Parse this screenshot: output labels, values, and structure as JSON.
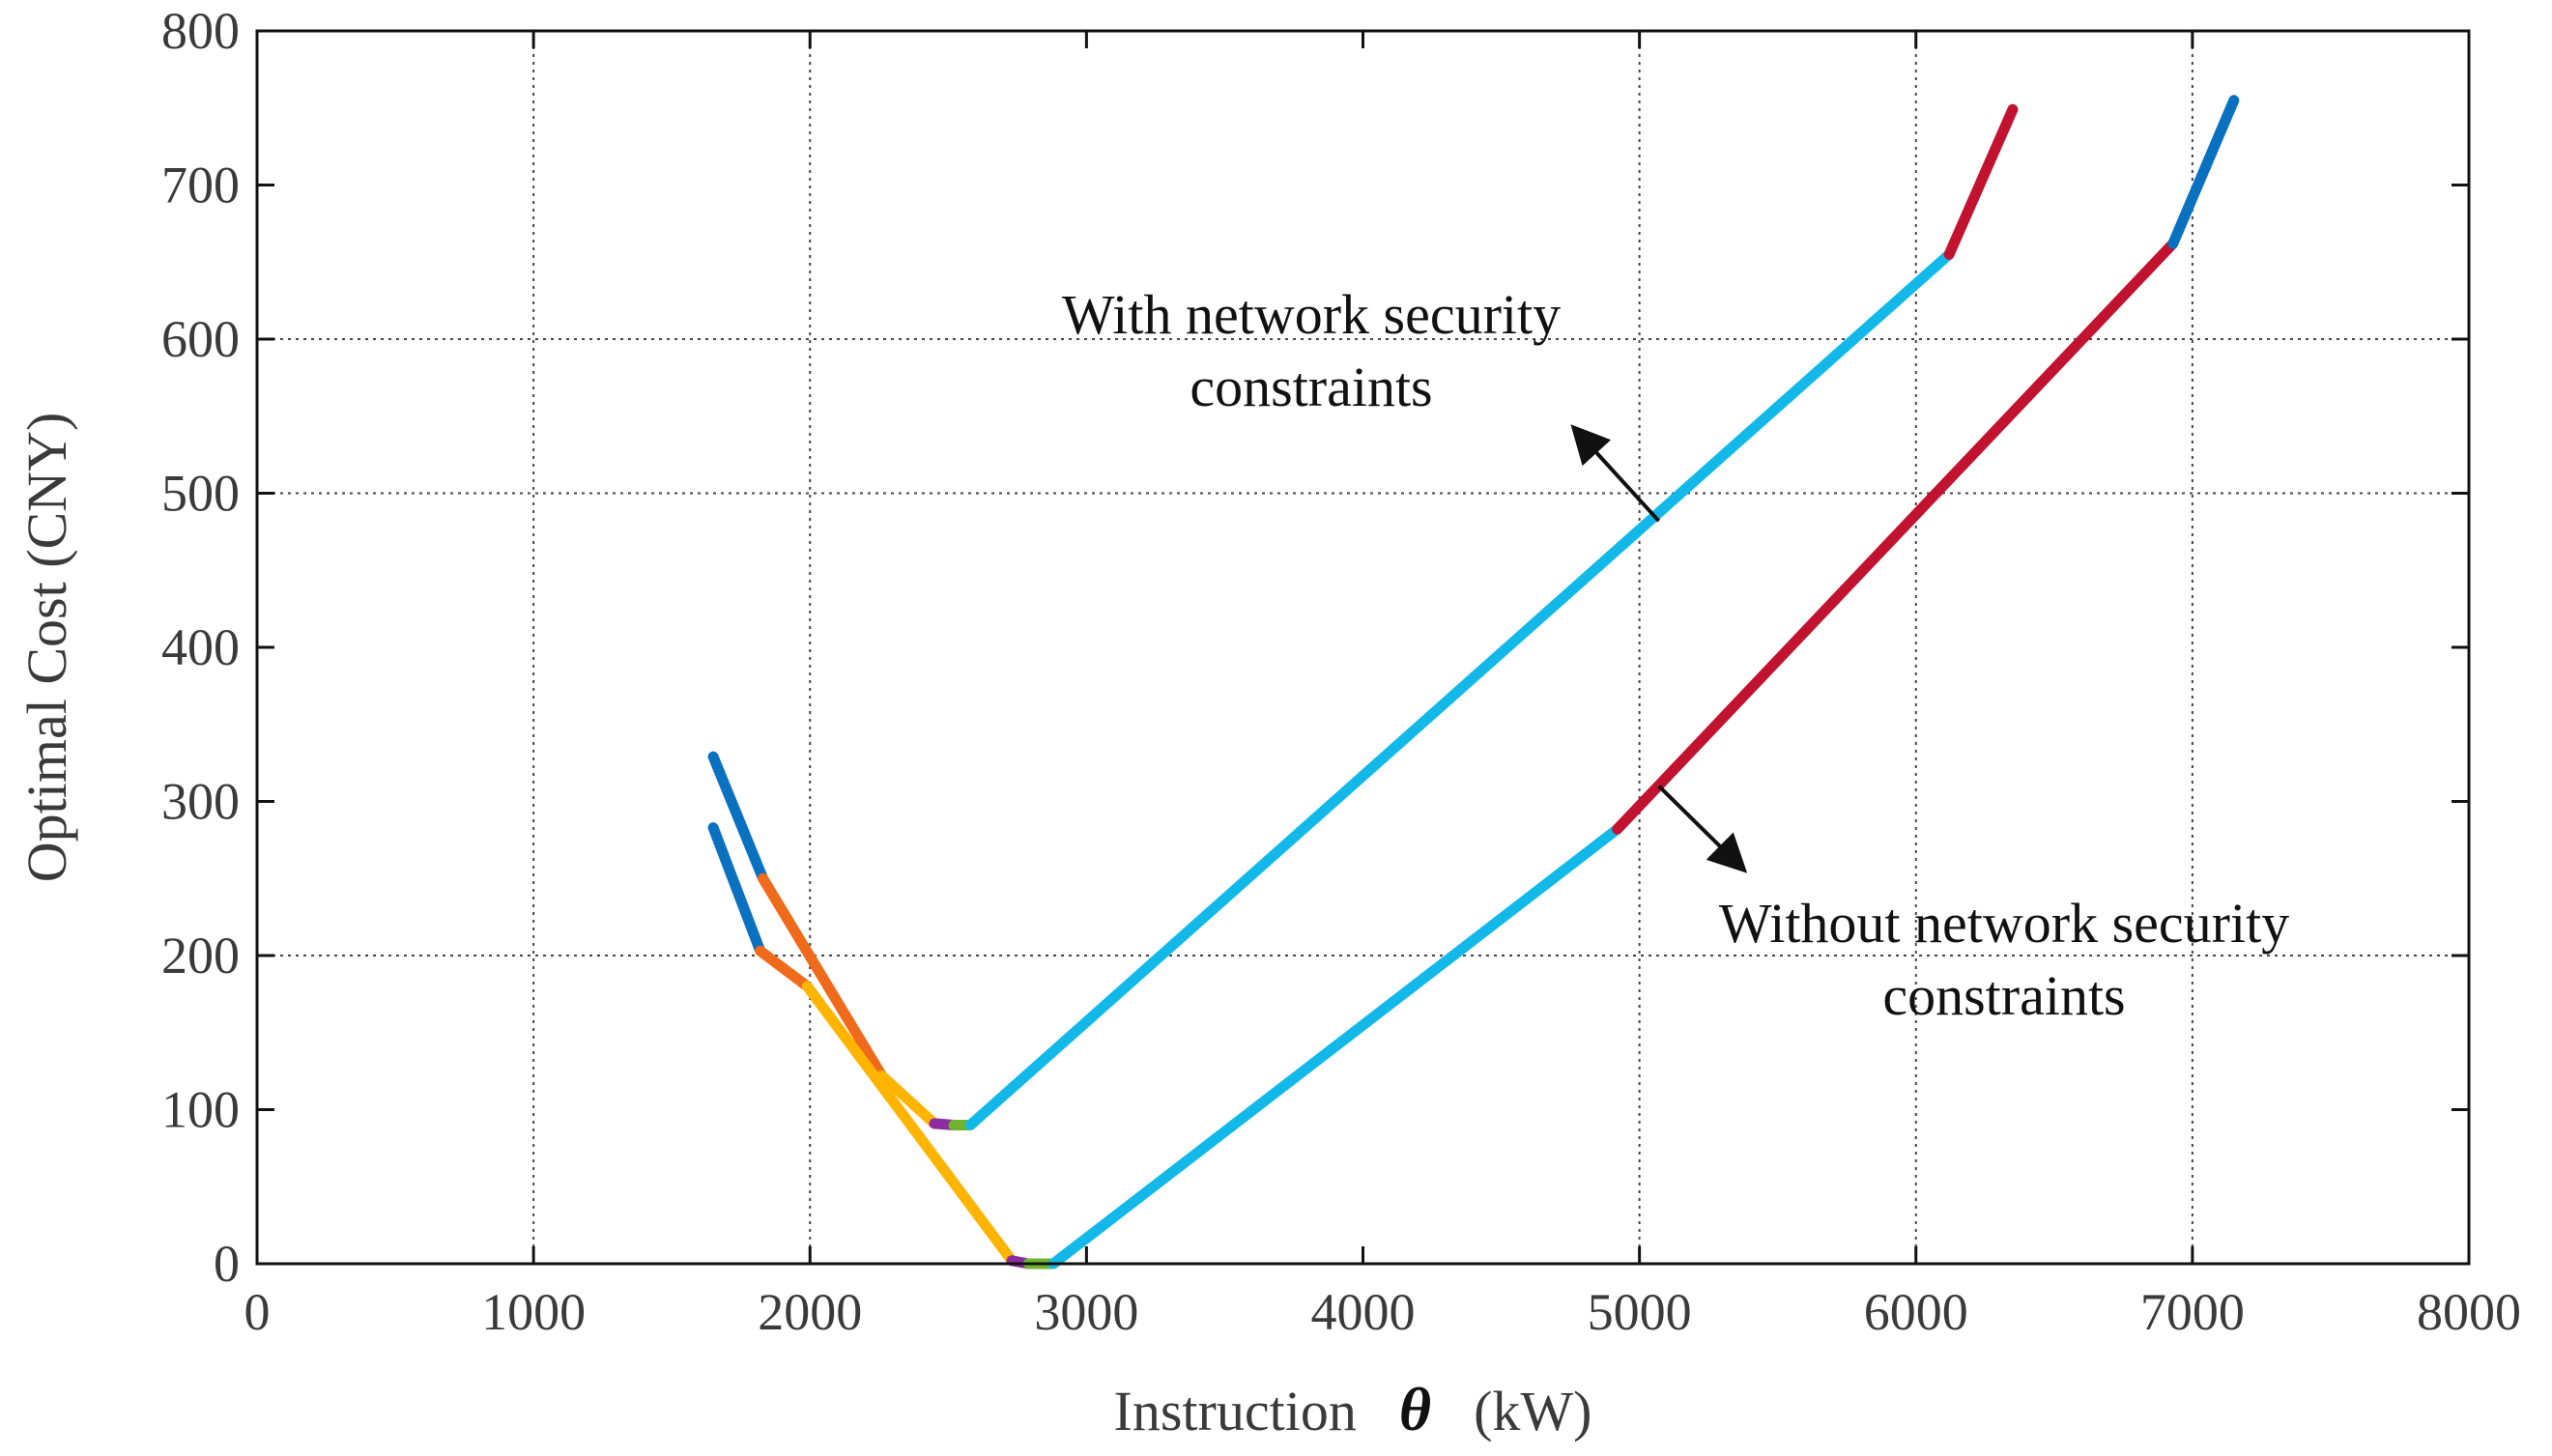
{
  "chart_data": {
    "type": "line",
    "title": "",
    "xlabel": "Instruction",
    "xlabel_symbol": "θ",
    "xlabel_unit": "(kW)",
    "ylabel": "Optimal Cost (CNY)",
    "xlim": [
      0,
      8000
    ],
    "ylim": [
      0,
      800
    ],
    "xticks": [
      "0",
      "1000",
      "2000",
      "3000",
      "4000",
      "5000",
      "6000",
      "7000",
      "8000"
    ],
    "yticks": [
      "0",
      "100",
      "200",
      "300",
      "400",
      "500",
      "600",
      "700",
      "800"
    ],
    "vertical_gridlines_x": [
      1000,
      2000,
      5000,
      6000,
      7000
    ],
    "horizontal_gridlines_y": [
      200,
      500,
      600
    ],
    "legend": "none",
    "series": [
      {
        "curve": "with-network-security-constraints",
        "segments": [
          {
            "color": "#0a70c0",
            "points": [
              [
                1650,
                329
              ],
              [
                1830,
                250
              ]
            ]
          },
          {
            "color": "#f06a1c",
            "points": [
              [
                1830,
                250
              ],
              [
                2260,
                122
              ]
            ]
          },
          {
            "color": "#ffb400",
            "points": [
              [
                2260,
                122
              ],
              [
                2450,
                91
              ]
            ]
          },
          {
            "color": "#8c2c9e",
            "points": [
              [
                2450,
                91
              ],
              [
                2520,
                90
              ]
            ]
          },
          {
            "color": "#6fb32e",
            "points": [
              [
                2520,
                90
              ],
              [
                2580,
                90
              ]
            ]
          },
          {
            "color": "#12b9e8",
            "points": [
              [
                2580,
                90
              ],
              [
                6120,
                655
              ]
            ]
          },
          {
            "color": "#c1122f",
            "points": [
              [
                6120,
                655
              ],
              [
                6350,
                749
              ]
            ]
          }
        ]
      },
      {
        "curve": "without-network-security-constraints",
        "segments": [
          {
            "color": "#0a70c0",
            "points": [
              [
                1650,
                283
              ],
              [
                1820,
                203
              ]
            ]
          },
          {
            "color": "#f06a1c",
            "points": [
              [
                1820,
                203
              ],
              [
                1990,
                180
              ]
            ]
          },
          {
            "color": "#ffb400",
            "points": [
              [
                1990,
                180
              ],
              [
                2730,
                2
              ]
            ]
          },
          {
            "color": "#8c2c9e",
            "points": [
              [
                2730,
                2
              ],
              [
                2790,
                0
              ]
            ]
          },
          {
            "color": "#6fb32e",
            "points": [
              [
                2790,
                0
              ],
              [
                2880,
                0
              ]
            ]
          },
          {
            "color": "#12b9e8",
            "points": [
              [
                2880,
                0
              ],
              [
                4920,
                282
              ]
            ]
          },
          {
            "color": "#c1122f",
            "points": [
              [
                4920,
                282
              ],
              [
                6930,
                662
              ]
            ]
          },
          {
            "color": "#0a70c0",
            "points": [
              [
                6930,
                662
              ],
              [
                7150,
                755
              ]
            ]
          }
        ]
      }
    ],
    "annotations": [
      {
        "lines": [
          "With network security",
          "constraints"
        ],
        "arrow_from": [
          5070,
          482
        ],
        "arrow_to": [
          4770,
          541
        ]
      },
      {
        "lines": [
          "Without network security",
          "constraints"
        ],
        "arrow_from": [
          5070,
          310
        ],
        "arrow_to": [
          5370,
          257
        ]
      }
    ]
  }
}
